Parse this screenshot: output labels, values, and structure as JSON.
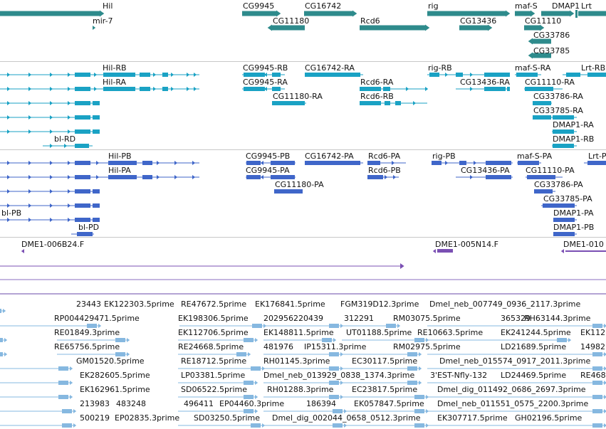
{
  "colors": {
    "gene": "#2e8b8c",
    "transcript": "#1aa2c4",
    "protein": "#3f66c9",
    "clone": "#7a4fb3",
    "est": "#86b8e0",
    "divider": "#c8c8c8"
  },
  "tracks": {
    "genes": {
      "labels": [
        "Hil",
        "CG9945",
        "CG16742",
        "rig",
        "maf-S",
        "DMAP1",
        "Lrt",
        "mir-7",
        "CG11180",
        "Rcd6",
        "CG13436",
        "CG11110",
        "CG33786",
        "CG33785"
      ]
    },
    "transcripts": {
      "labels": [
        "Hil-RB",
        "Hil-RA",
        "CG9945-RB",
        "CG9945-RA",
        "CG16742-RA",
        "CG11180-RA",
        "Rcd6-RA",
        "Rcd6-RB",
        "rig-RB",
        "CG13436-RA",
        "maf-S-RA",
        "Lrt-RB",
        "CG11110-RA",
        "CG33786-RA",
        "CG33785-RA",
        "DMAP1-RA",
        "DMAP1-RB",
        "bl-RD"
      ]
    },
    "proteins": {
      "labels": [
        "Hil-PB",
        "Hil-PA",
        "CG9945-PB",
        "CG9945-PA",
        "CG16742-PA",
        "Rcd6-PA",
        "Rcd6-PB",
        "CG11180-PA",
        "rig-PB",
        "CG13436-PA",
        "maf-S-PA",
        "Lrt-P",
        "CG11110-PA",
        "CG33786-PA",
        "CG33785-PA",
        "DMAP1-PA",
        "DMAP1-PB",
        "bl-PB",
        "bl-PD"
      ]
    },
    "clones": {
      "labels": [
        "DME1-006B24.F",
        "DME1-005N14.F",
        "DME1-010"
      ]
    },
    "ests": {
      "labels": [
        "23443",
        "EK122303.5prime",
        "RE47672.5prime",
        "EK176841.5prime",
        "FGM319D12.3prime",
        "Dmel_neb_007749_0936_2117.3prime",
        "RP004429471.5prime",
        "EK198306.5prime",
        "202956220439",
        "312291",
        "RM03075.5prime",
        "365329",
        "RH63144.3prime",
        "RE01849.3prime",
        "EK112706.5prime",
        "EK148811.5prime",
        "UT01188.5prime",
        "RE10663.5prime",
        "EK241244.5prime",
        "EK112",
        "RE65756.5prime",
        "RE24668.5prime",
        "481976",
        "IP15311.3prime",
        "RM02975.5prime",
        "LD21689.5prime",
        "14982",
        "GM01520.5prime",
        "RE18712.5prime",
        "RH01145.3prime",
        "EC30117.5prime",
        "Dmel_neb_015574_0917_2011.3prime",
        "EK282605.5prime",
        "LP03381.5prime",
        "Dmel_neb_013929_0838_1374.3prime",
        "3'EST-Nfly-132",
        "LD24469.5prime",
        "RE468",
        "EK162961.5prime",
        "SD06522.5prime",
        "RH01288.3prime",
        "EC23817.5prime",
        "Dmel_dig_011492_0686_2697.3prime",
        "213983",
        "483248",
        "496411",
        "EP04460.3prime",
        "186394",
        "EK057847.5prime",
        "Dmel_neb_011551_0575_2200.3prime",
        "500219",
        "EP02835.3prime",
        "SD03250.5prime",
        "Dmel_dig_002044_0658_0512.3prime",
        "EK307717.5prime",
        "GH02196.5prime"
      ]
    }
  }
}
